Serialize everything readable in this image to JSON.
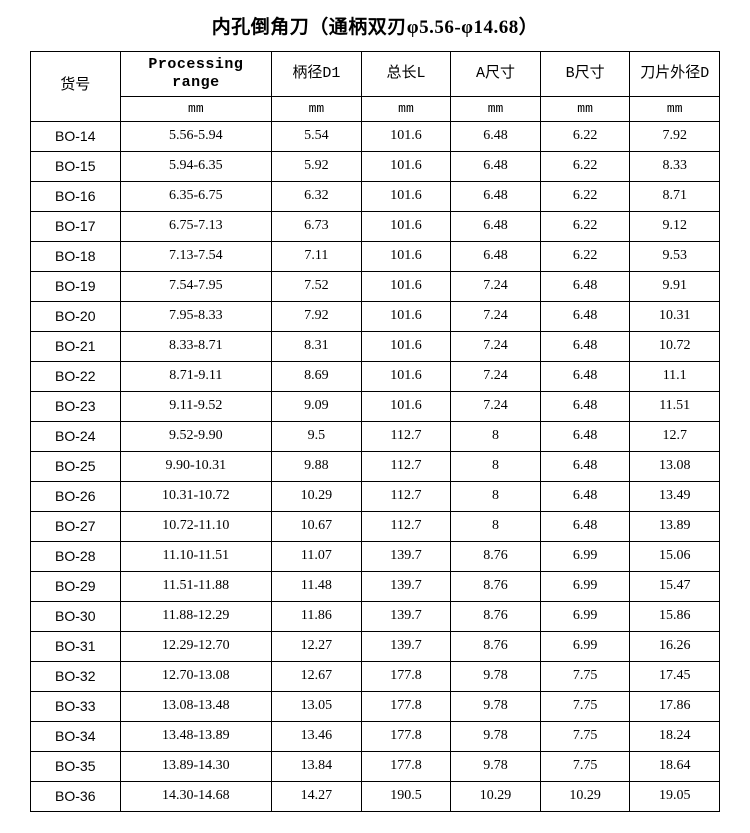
{
  "title": "内孔倒角刀（通柄双刃φ5.56-φ14.68）",
  "header": {
    "code": "货号",
    "range": "Processing range",
    "d1": "柄径D1",
    "length": "总长L",
    "a": "A尺寸",
    "b": "B尺寸",
    "blade": "刀片外径D",
    "unit": "mm"
  },
  "rows": [
    {
      "code": "BO-14",
      "range": "5.56-5.94",
      "d1": "5.54",
      "len": "101.6",
      "a": "6.48",
      "b": "6.22",
      "d": "7.92"
    },
    {
      "code": "BO-15",
      "range": "5.94-6.35",
      "d1": "5.92",
      "len": "101.6",
      "a": "6.48",
      "b": "6.22",
      "d": "8.33"
    },
    {
      "code": "BO-16",
      "range": "6.35-6.75",
      "d1": "6.32",
      "len": "101.6",
      "a": "6.48",
      "b": "6.22",
      "d": "8.71"
    },
    {
      "code": "BO-17",
      "range": "6.75-7.13",
      "d1": "6.73",
      "len": "101.6",
      "a": "6.48",
      "b": "6.22",
      "d": "9.12"
    },
    {
      "code": "BO-18",
      "range": "7.13-7.54",
      "d1": "7.11",
      "len": "101.6",
      "a": "6.48",
      "b": "6.22",
      "d": "9.53"
    },
    {
      "code": "BO-19",
      "range": "7.54-7.95",
      "d1": "7.52",
      "len": "101.6",
      "a": "7.24",
      "b": "6.48",
      "d": "9.91"
    },
    {
      "code": "BO-20",
      "range": "7.95-8.33",
      "d1": "7.92",
      "len": "101.6",
      "a": "7.24",
      "b": "6.48",
      "d": "10.31"
    },
    {
      "code": "BO-21",
      "range": "8.33-8.71",
      "d1": "8.31",
      "len": "101.6",
      "a": "7.24",
      "b": "6.48",
      "d": "10.72"
    },
    {
      "code": "BO-22",
      "range": "8.71-9.11",
      "d1": "8.69",
      "len": "101.6",
      "a": "7.24",
      "b": "6.48",
      "d": "11.1"
    },
    {
      "code": "BO-23",
      "range": "9.11-9.52",
      "d1": "9.09",
      "len": "101.6",
      "a": "7.24",
      "b": "6.48",
      "d": "11.51"
    },
    {
      "code": "BO-24",
      "range": "9.52-9.90",
      "d1": "9.5",
      "len": "112.7",
      "a": "8",
      "b": "6.48",
      "d": "12.7"
    },
    {
      "code": "BO-25",
      "range": "9.90-10.31",
      "d1": "9.88",
      "len": "112.7",
      "a": "8",
      "b": "6.48",
      "d": "13.08"
    },
    {
      "code": "BO-26",
      "range": "10.31-10.72",
      "d1": "10.29",
      "len": "112.7",
      "a": "8",
      "b": "6.48",
      "d": "13.49"
    },
    {
      "code": "BO-27",
      "range": "10.72-11.10",
      "d1": "10.67",
      "len": "112.7",
      "a": "8",
      "b": "6.48",
      "d": "13.89"
    },
    {
      "code": "BO-28",
      "range": "11.10-11.51",
      "d1": "11.07",
      "len": "139.7",
      "a": "8.76",
      "b": "6.99",
      "d": "15.06"
    },
    {
      "code": "BO-29",
      "range": "11.51-11.88",
      "d1": "11.48",
      "len": "139.7",
      "a": "8.76",
      "b": "6.99",
      "d": "15.47"
    },
    {
      "code": "BO-30",
      "range": "11.88-12.29",
      "d1": "11.86",
      "len": "139.7",
      "a": "8.76",
      "b": "6.99",
      "d": "15.86"
    },
    {
      "code": "BO-31",
      "range": "12.29-12.70",
      "d1": "12.27",
      "len": "139.7",
      "a": "8.76",
      "b": "6.99",
      "d": "16.26"
    },
    {
      "code": "BO-32",
      "range": "12.70-13.08",
      "d1": "12.67",
      "len": "177.8",
      "a": "9.78",
      "b": "7.75",
      "d": "17.45"
    },
    {
      "code": "BO-33",
      "range": "13.08-13.48",
      "d1": "13.05",
      "len": "177.8",
      "a": "9.78",
      "b": "7.75",
      "d": "17.86"
    },
    {
      "code": "BO-34",
      "range": "13.48-13.89",
      "d1": "13.46",
      "len": "177.8",
      "a": "9.78",
      "b": "7.75",
      "d": "18.24"
    },
    {
      "code": "BO-35",
      "range": "13.89-14.30",
      "d1": "13.84",
      "len": "177.8",
      "a": "9.78",
      "b": "7.75",
      "d": "18.64"
    },
    {
      "code": "BO-36",
      "range": "14.30-14.68",
      "d1": "14.27",
      "len": "190.5",
      "a": "10.29",
      "b": "10.29",
      "d": "19.05"
    }
  ]
}
